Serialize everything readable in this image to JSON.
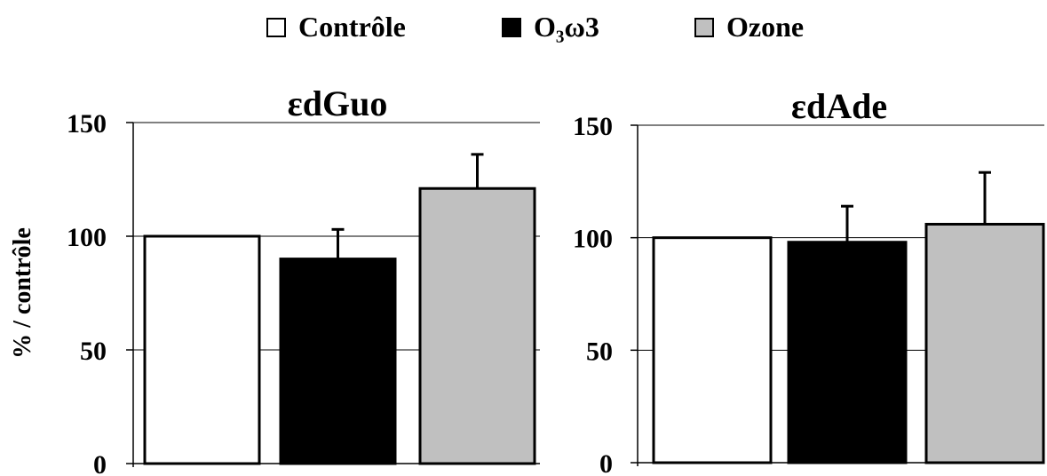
{
  "legend": [
    {
      "label": "Contrôle",
      "color": "#ffffff"
    },
    {
      "label": "O₃ω3",
      "color": "#000000"
    },
    {
      "label": "Ozone",
      "color": "#c0c0c0"
    }
  ],
  "ylabel": "% / contrôle",
  "chart_data": [
    {
      "type": "bar",
      "title": "εdGuo",
      "categories": [
        "Contrôle",
        "O₃ω3",
        "Ozone"
      ],
      "series": [
        {
          "values": [
            100,
            90,
            121
          ],
          "errors": [
            0,
            13,
            15
          ]
        }
      ],
      "colors": [
        "#ffffff",
        "#000000",
        "#c0c0c0"
      ],
      "ylim": [
        0,
        150
      ],
      "yticks": [
        0,
        50,
        100,
        150
      ],
      "grid": true
    },
    {
      "type": "bar",
      "title": "εdAde",
      "categories": [
        "Contrôle",
        "O₃ω3",
        "Ozone"
      ],
      "series": [
        {
          "values": [
            100,
            98,
            106
          ],
          "errors": [
            0,
            16,
            23
          ]
        }
      ],
      "colors": [
        "#ffffff",
        "#000000",
        "#c0c0c0"
      ],
      "ylim": [
        0,
        150
      ],
      "yticks": [
        0,
        50,
        100,
        150
      ],
      "grid": true
    }
  ]
}
